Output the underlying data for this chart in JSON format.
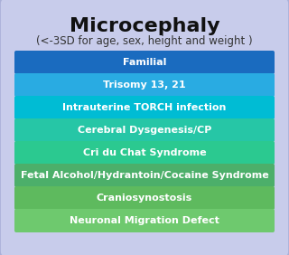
{
  "title": "Microcephaly",
  "subtitle": "(<-3SD for age, sex, height and weight )",
  "background_color": "#c8cceb",
  "items": [
    {
      "label": "Familial",
      "color": "#1a6bbf"
    },
    {
      "label": "Trisomy 13, 21",
      "color": "#29abe2"
    },
    {
      "label": "Intrauterine TORCH infection",
      "color": "#00bcd4"
    },
    {
      "label": "Cerebral Dysgenesis/CP",
      "color": "#26c6a6"
    },
    {
      "label": "Cri du Chat Syndrome",
      "color": "#2bc990"
    },
    {
      "label": "Fetal Alcohol/Hydrantoin/Cocaine Syndrome",
      "color": "#4caf6a"
    },
    {
      "label": "Craniosynostosis",
      "color": "#5eba5e"
    },
    {
      "label": "Neuronal Migration Defect",
      "color": "#6ec96e"
    }
  ],
  "text_color": "#ffffff",
  "title_color": "#111111",
  "subtitle_color": "#333333",
  "title_fontsize": 16,
  "subtitle_fontsize": 8.5,
  "item_fontsize": 8.0
}
